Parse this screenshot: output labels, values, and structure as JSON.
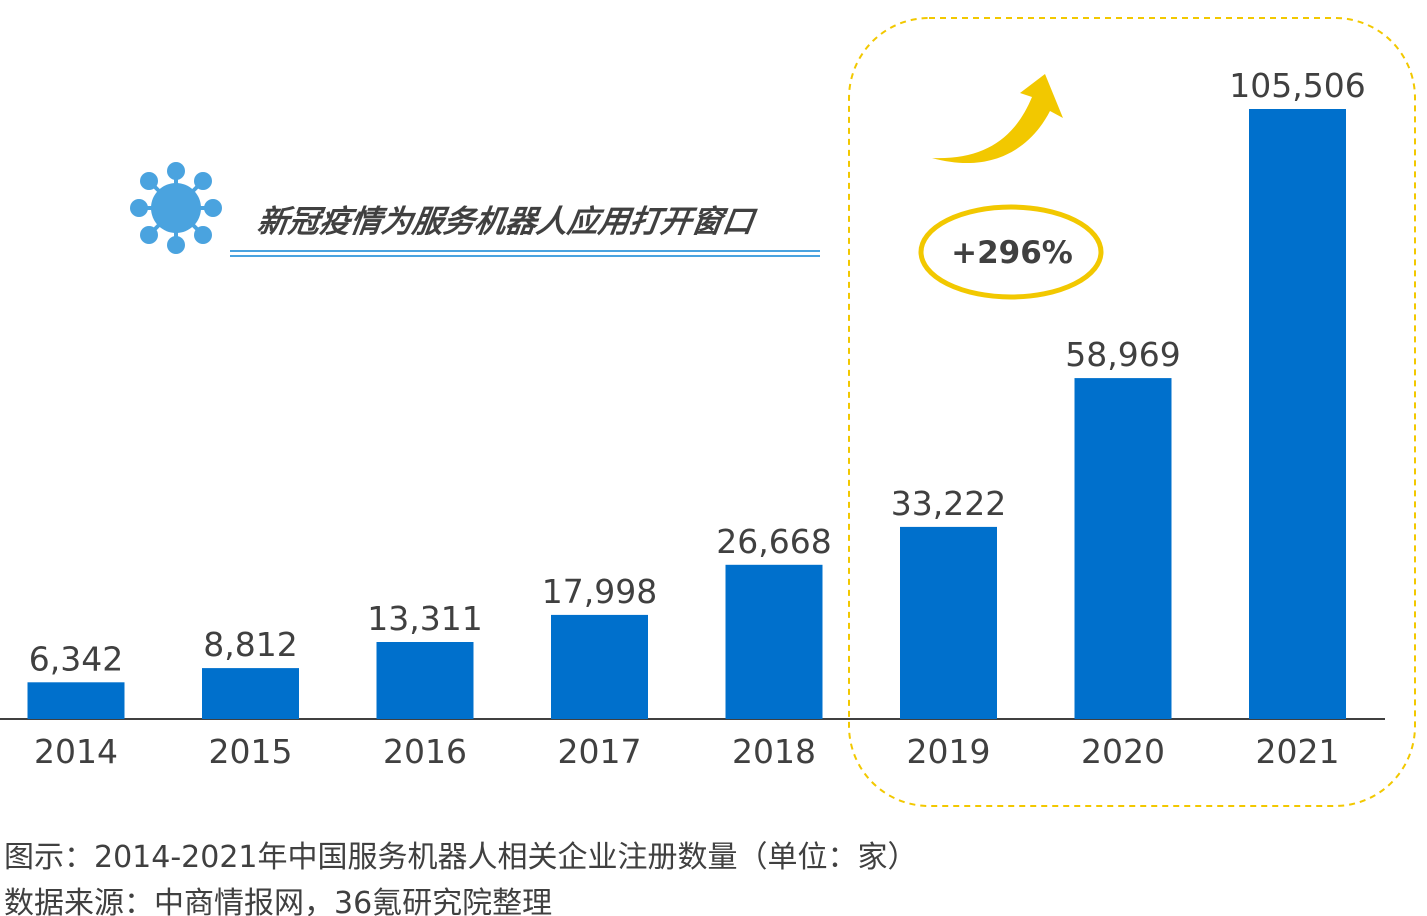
{
  "headline": "新冠疫情为服务机器人应用打开窗口",
  "growth_badge": "+296%",
  "caption_title": "图示：2014-2021年中国服务机器人相关企业注册数量（单位：家）",
  "caption_source": "数据来源：中商情报网，36氪研究院整理",
  "colors": {
    "bar": "#0070CC",
    "highlight_border": "#F2C800",
    "arrow": "#F2C800",
    "virus": "#4AA3DF",
    "underline": "#4AA3DF",
    "text": "#404040"
  },
  "icons": {
    "virus": "virus-icon",
    "arrow": "trend-up-arrow-icon"
  },
  "chart_data": {
    "type": "bar",
    "title": "",
    "xlabel": "",
    "ylabel": "",
    "categories": [
      "2014",
      "2015",
      "2016",
      "2017",
      "2018",
      "2019",
      "2020",
      "2021"
    ],
    "values": [
      6342,
      8812,
      13311,
      17998,
      26668,
      33222,
      58969,
      105506
    ],
    "value_labels": [
      "6,342",
      "8,812",
      "13,311",
      "17,998",
      "26,668",
      "33,222",
      "58,969",
      "105,506"
    ],
    "ylim": [
      0,
      105506
    ],
    "grid": false,
    "legend": "none",
    "highlight_categories": [
      "2019",
      "2020",
      "2021"
    ]
  }
}
